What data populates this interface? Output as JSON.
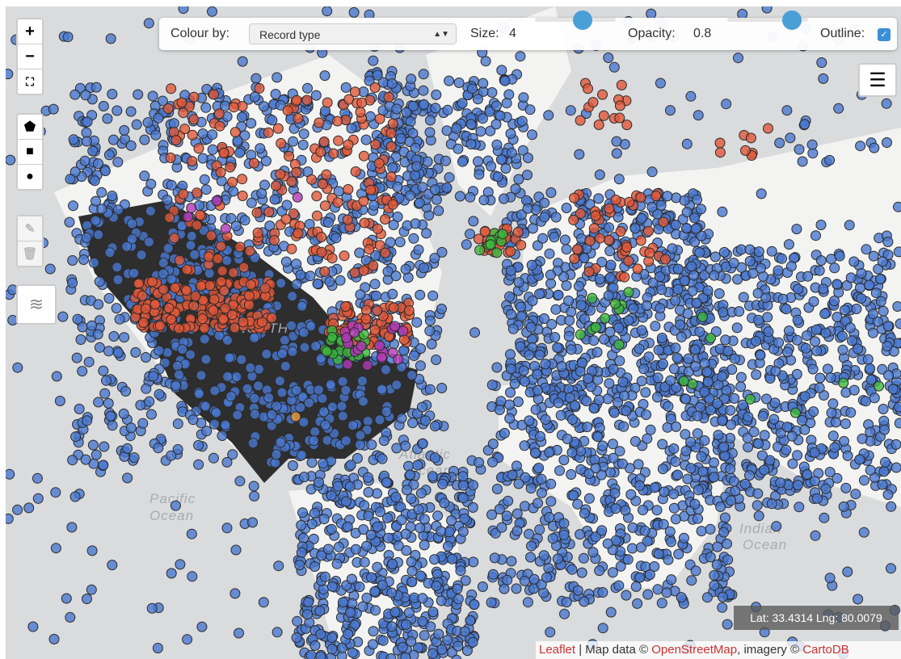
{
  "controls": {
    "colour_label": "Colour by:",
    "colour_value": "Record type",
    "size_label": "Size:",
    "size": 4,
    "opacity_label": "Opacity:",
    "opacity": 0.8,
    "outline_label": "Outline:",
    "outline": true
  },
  "map_labels": {
    "atlantic": [
      "Atlantic",
      "Ocean"
    ],
    "pacific": [
      "Pacific",
      "Ocean"
    ],
    "indian": [
      "Indian",
      "Ocean"
    ],
    "north": "NORTH"
  },
  "coordinates": "Lat: 33.4314 Lng: 80.0079",
  "attribution": {
    "leaflet": "Leaflet",
    "map_data": " | Map data © ",
    "osm": "OpenStreetMap",
    "imagery": ", imagery © ",
    "carto": "CartoDB"
  }
}
